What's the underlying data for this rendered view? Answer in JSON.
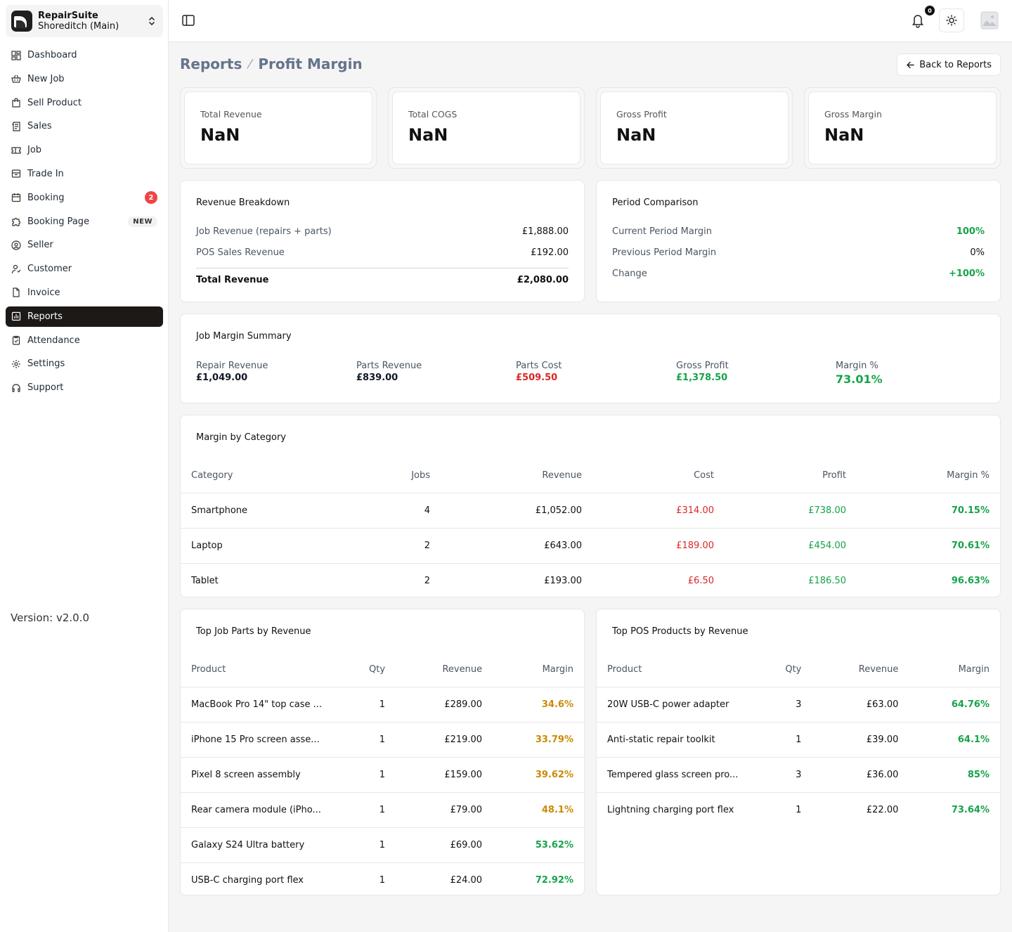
{
  "org": {
    "name": "RepairSuite",
    "branch": "Shoreditch (Main)"
  },
  "nav": [
    {
      "label": "Dashboard",
      "icon": "dashboard-icon"
    },
    {
      "label": "New Job",
      "icon": "basket-icon"
    },
    {
      "label": "Sell Product",
      "icon": "shopping-bag-icon"
    },
    {
      "label": "Sales",
      "icon": "receipt-icon"
    },
    {
      "label": "Job",
      "icon": "ticket-icon"
    },
    {
      "label": "Trade In",
      "icon": "archive-icon"
    },
    {
      "label": "Booking",
      "icon": "calendar-icon",
      "badge": "2"
    },
    {
      "label": "Booking Page",
      "icon": "puzzle-icon",
      "tag": "NEW"
    },
    {
      "label": "Seller",
      "icon": "at-sign-icon"
    },
    {
      "label": "Customer",
      "icon": "user-icon"
    },
    {
      "label": "Invoice",
      "icon": "file-icon"
    },
    {
      "label": "Reports",
      "icon": "chart-icon",
      "active": true
    },
    {
      "label": "Attendance",
      "icon": "clipboard-check-icon"
    },
    {
      "label": "Settings",
      "icon": "gear-icon"
    },
    {
      "label": "Support",
      "icon": "headset-icon"
    }
  ],
  "version": "Version: v2.0.0",
  "topbar": {
    "notification_count": "0"
  },
  "breadcrumb": {
    "parent": "Reports",
    "current": "Profit Margin"
  },
  "back_button": "Back to Reports",
  "kpis": [
    {
      "label": "Total Revenue",
      "value": "NaN"
    },
    {
      "label": "Total COGS",
      "value": "NaN"
    },
    {
      "label": "Gross Profit",
      "value": "NaN"
    },
    {
      "label": "Gross Margin",
      "value": "NaN"
    }
  ],
  "revenue_breakdown": {
    "title": "Revenue Breakdown",
    "job_label": "Job Revenue (repairs + parts)",
    "job_value": "£1,888.00",
    "pos_label": "POS Sales Revenue",
    "pos_value": "£192.00",
    "total_label": "Total Revenue",
    "total_value": "£2,080.00"
  },
  "period_comparison": {
    "title": "Period Comparison",
    "current_label": "Current Period Margin",
    "current_value": "100%",
    "previous_label": "Previous Period Margin",
    "previous_value": "0%",
    "change_label": "Change",
    "change_value": "+100%"
  },
  "job_margin": {
    "title": "Job Margin Summary",
    "repair_label": "Repair Revenue",
    "repair_value": "£1,049.00",
    "parts_rev_label": "Parts Revenue",
    "parts_rev_value": "£839.00",
    "parts_cost_label": "Parts Cost",
    "parts_cost_value": "£509.50",
    "gross_label": "Gross Profit",
    "gross_value": "£1,378.50",
    "margin_label": "Margin %",
    "margin_value": "73.01%"
  },
  "category": {
    "title": "Margin by Category",
    "headers": [
      "Category",
      "Jobs",
      "Revenue",
      "Cost",
      "Profit",
      "Margin %"
    ],
    "rows": [
      [
        "Smartphone",
        "4",
        "£1,052.00",
        "£314.00",
        "£738.00",
        "70.15%"
      ],
      [
        "Laptop",
        "2",
        "£643.00",
        "£189.00",
        "£454.00",
        "70.61%"
      ],
      [
        "Tablet",
        "2",
        "£193.00",
        "£6.50",
        "£186.50",
        "96.63%"
      ]
    ]
  },
  "top_parts": {
    "title": "Top Job Parts by Revenue",
    "headers": [
      "Product",
      "Qty",
      "Revenue",
      "Margin"
    ],
    "rows": [
      [
        "MacBook Pro 14\" top case ...",
        "1",
        "£289.00",
        "34.6%"
      ],
      [
        "iPhone 15 Pro screen asse...",
        "1",
        "£219.00",
        "33.79%"
      ],
      [
        "Pixel 8 screen assembly",
        "1",
        "£159.00",
        "39.62%"
      ],
      [
        "Rear camera module (iPho...",
        "1",
        "£79.00",
        "48.1%"
      ],
      [
        "Galaxy S24 Ultra battery",
        "1",
        "£69.00",
        "53.62%"
      ],
      [
        "USB-C charging port flex",
        "1",
        "£24.00",
        "72.92%"
      ]
    ]
  },
  "top_pos": {
    "title": "Top POS Products by Revenue",
    "headers": [
      "Product",
      "Qty",
      "Revenue",
      "Margin"
    ],
    "rows": [
      [
        "20W USB-C power adapter",
        "3",
        "£63.00",
        "64.76%"
      ],
      [
        "Anti-static repair toolkit",
        "1",
        "£39.00",
        "64.1%"
      ],
      [
        "Tempered glass screen pro...",
        "3",
        "£36.00",
        "85%"
      ],
      [
        "Lightning charging port flex",
        "1",
        "£22.00",
        "73.64%"
      ]
    ]
  },
  "colors": {
    "green": "#16a34a",
    "red": "#dc2626",
    "amber": "#ca8a04",
    "active_nav": "#1c1917"
  }
}
